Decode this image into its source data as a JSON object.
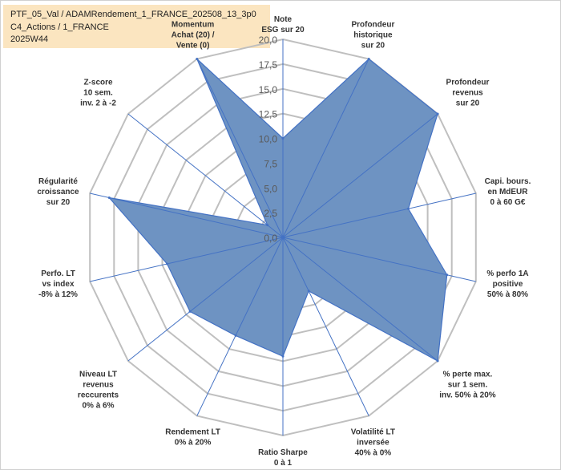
{
  "title_lines": [
    "PTF_05_Val / ADAMRendement_1_FRANCE_202508_13_3p0",
    "C4_Actions / 1_FRANCE",
    "2025W44"
  ],
  "chart_data": {
    "type": "radar",
    "rlim": [
      0,
      20
    ],
    "ticks": [
      "0,0",
      "2,5",
      "5,0",
      "7,5",
      "10,0",
      "12,5",
      "15,0",
      "17,5",
      "20,0"
    ],
    "tick_values": [
      0,
      2.5,
      5,
      7.5,
      10,
      12.5,
      15,
      17.5,
      20
    ],
    "axes": [
      {
        "label": [
          "Note",
          "ESG sur 20"
        ],
        "value": 10
      },
      {
        "label": [
          "Profondeur",
          "historique",
          "sur 20"
        ],
        "value": 20
      },
      {
        "label": [
          "Profondeur",
          "revenus",
          "sur 20"
        ],
        "value": 20
      },
      {
        "label": [
          "Capi. bours.",
          "en MdEUR",
          "0 à 60 G€"
        ],
        "value": 13
      },
      {
        "label": [
          "% perfo 1A",
          "positive",
          "50% à 80%"
        ],
        "value": 17
      },
      {
        "label": [
          "% perte max.",
          "sur 1 sem.",
          "inv. 50% à 20%"
        ],
        "value": 20
      },
      {
        "label": [
          "Volatilité LT",
          "inversée",
          "40% à 0%"
        ],
        "value": 6
      },
      {
        "label": [
          "Ratio Sharpe",
          "0 à 1"
        ],
        "value": 12
      },
      {
        "label": [
          "Rendement LT",
          "0% à 20%"
        ],
        "value": 11
      },
      {
        "label": [
          "Niveau LT",
          "revenus",
          "reccurents",
          "0% à 6%"
        ],
        "value": 12
      },
      {
        "label": [
          "Perfo. LT",
          "vs index",
          "-8% à 12%"
        ],
        "value": 12
      },
      {
        "label": [
          "Régularité",
          "croissance",
          "sur 20"
        ],
        "value": 18
      },
      {
        "label": [
          "Z-score",
          "10 sem.",
          "inv. 2 à -2"
        ],
        "value": 2
      },
      {
        "label": [
          "Momentum",
          "Achat (20) /",
          "Vente (0)"
        ],
        "value": 20
      }
    ],
    "grid": true,
    "legend": "none",
    "fill_color": "#6e93c2",
    "line_color": "#4472c4",
    "grid_color": "#bfbfbf"
  }
}
